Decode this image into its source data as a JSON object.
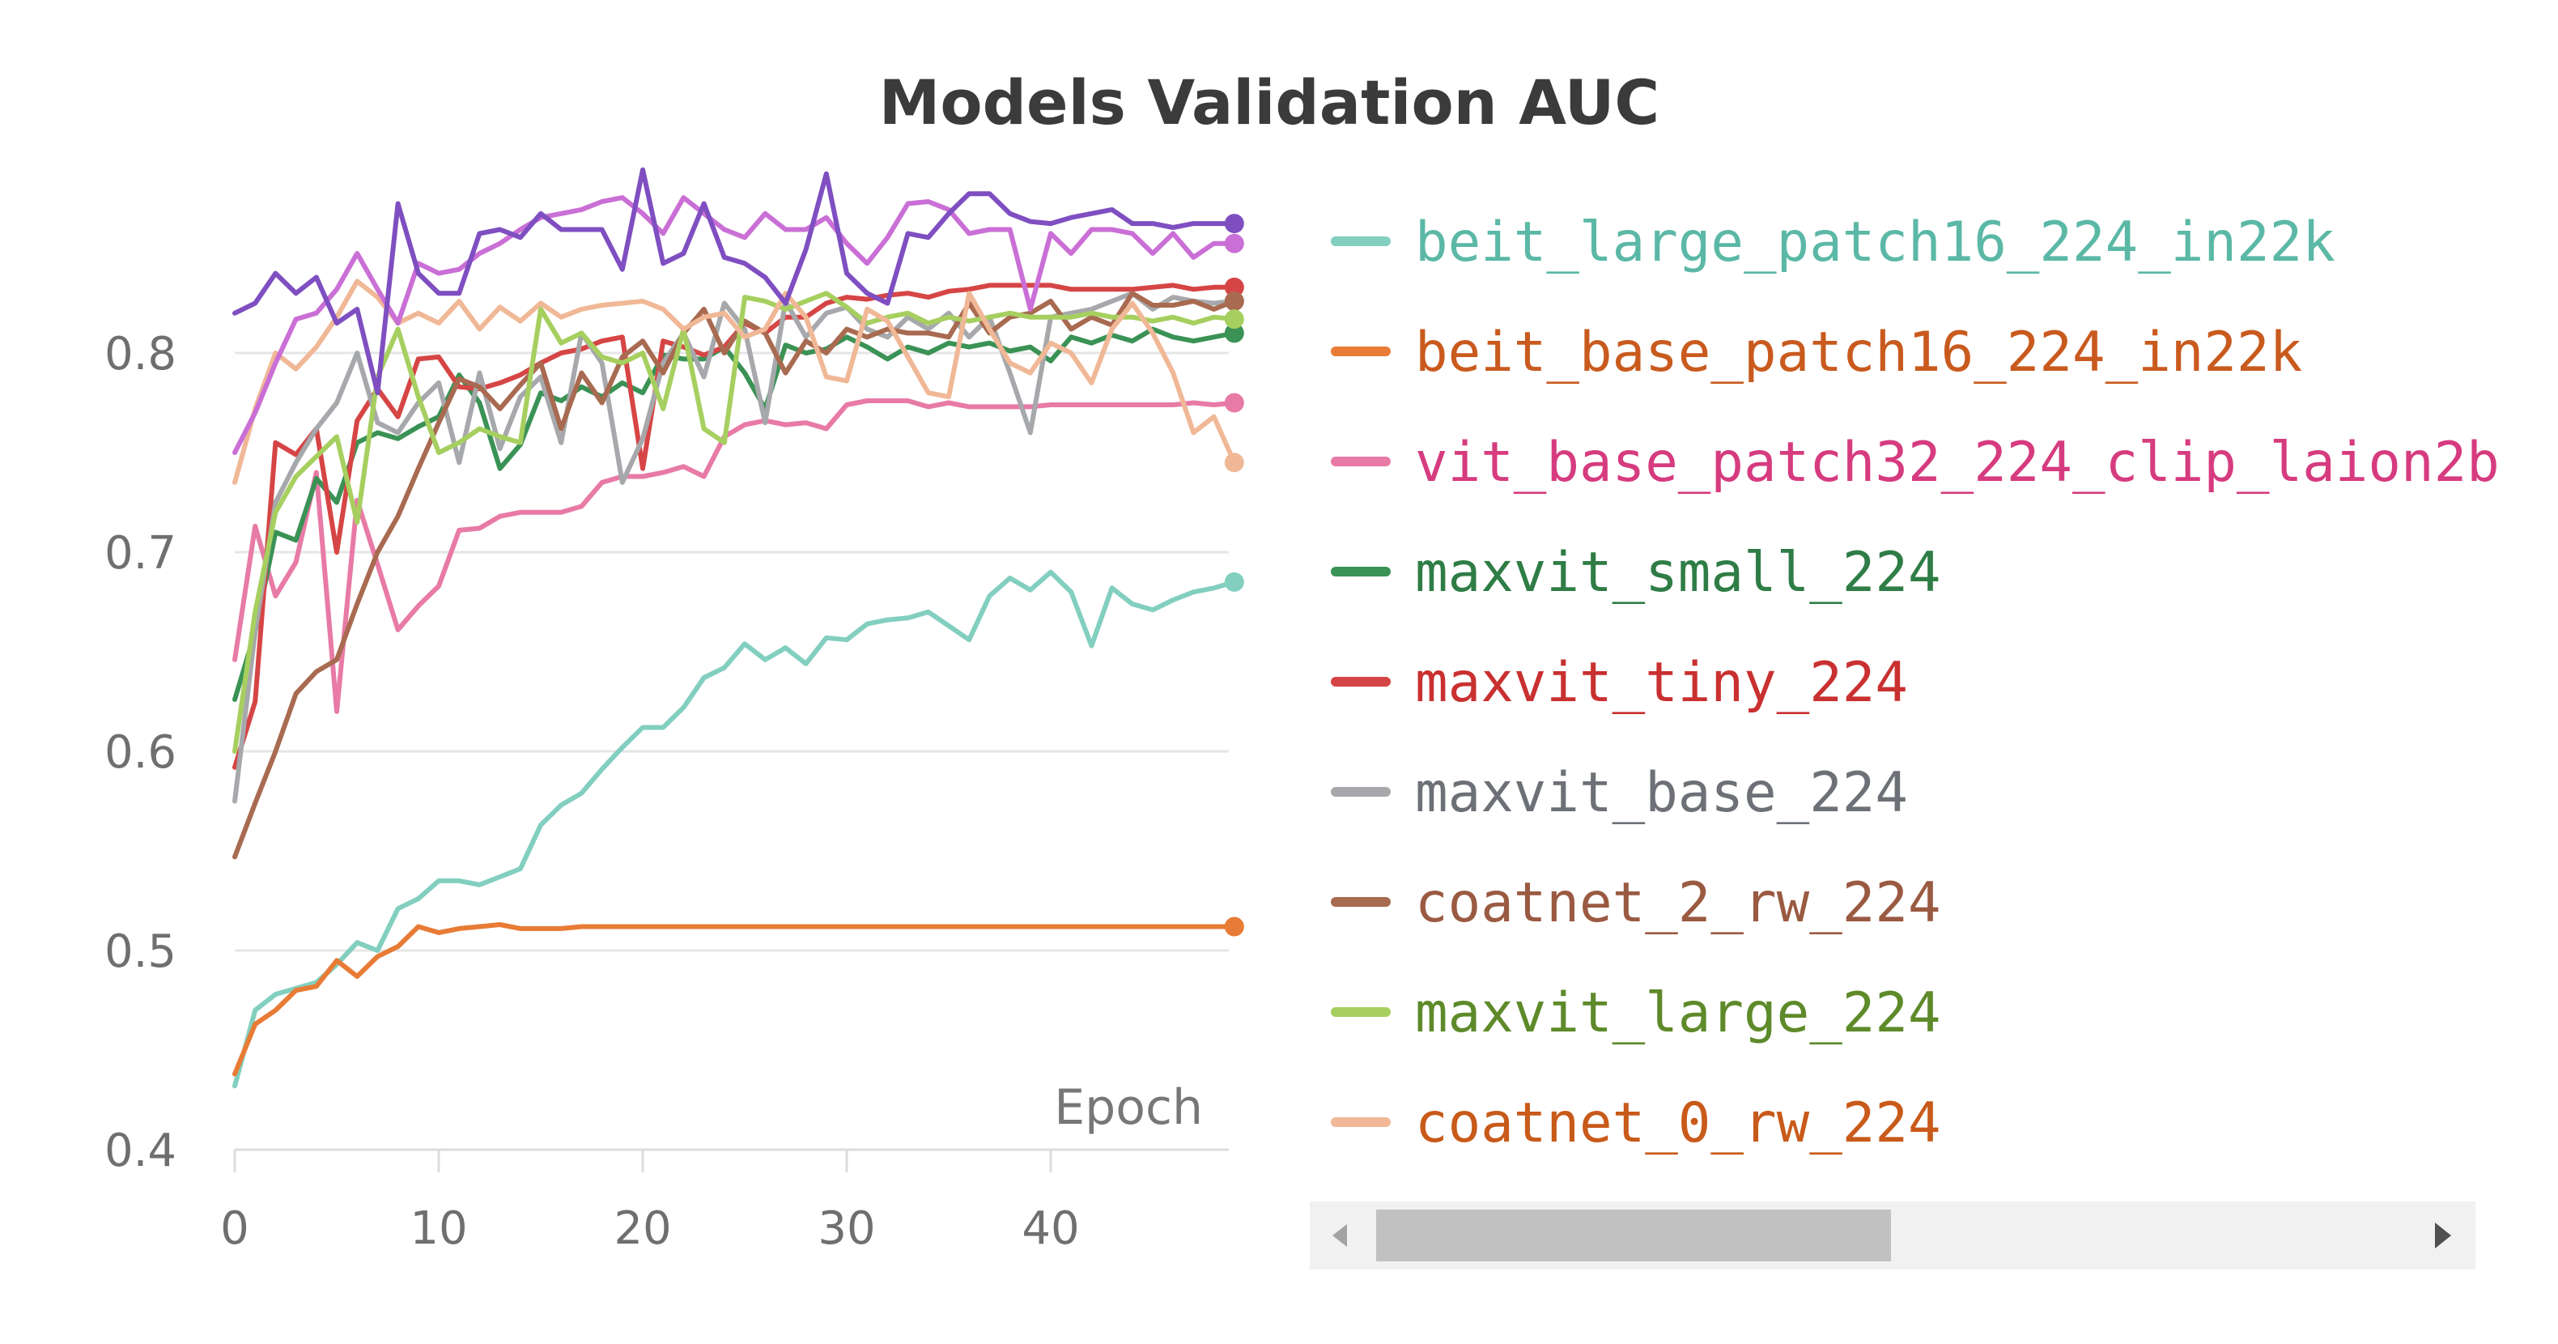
{
  "chart_data": {
    "type": "line",
    "title": "Models Validation AUC",
    "xlabel": "Epoch",
    "ylabel": "",
    "xlim": [
      0,
      49
    ],
    "ylim": [
      0.4,
      0.9
    ],
    "xticks": [
      0,
      10,
      20,
      30,
      40
    ],
    "xtick_labels": [
      "0",
      "10",
      "20",
      "30",
      "40"
    ],
    "yticks": [
      0.4,
      0.5,
      0.6,
      0.7,
      0.8
    ],
    "ytick_labels": [
      "0.4",
      "0.5",
      "0.6",
      "0.7",
      "0.8"
    ],
    "grid": true,
    "legend_position": "right",
    "legend_scrollbar": true,
    "series": [
      {
        "name": "beit_large_patch16_224_in22k",
        "color": "#82cfbf",
        "label_color": "#5bb8a6",
        "x": [
          0,
          1,
          2,
          3,
          4,
          5,
          6,
          7,
          8,
          9,
          10,
          11,
          12,
          13,
          14,
          15,
          16,
          17,
          18,
          19,
          20,
          21,
          22,
          23,
          24,
          25,
          26,
          27,
          28,
          29,
          30,
          31,
          32,
          33,
          34,
          35,
          36,
          37,
          38,
          39,
          40,
          41,
          42,
          43,
          44,
          45,
          46,
          47,
          48,
          49
        ],
        "y": [
          0.432,
          0.47,
          0.478,
          0.481,
          0.484,
          0.493,
          0.504,
          0.5,
          0.521,
          0.526,
          0.535,
          0.535,
          0.533,
          0.537,
          0.541,
          0.563,
          0.573,
          0.579,
          0.591,
          0.602,
          0.612,
          0.612,
          0.622,
          0.637,
          0.642,
          0.654,
          0.646,
          0.652,
          0.644,
          0.657,
          0.656,
          0.664,
          0.666,
          0.667,
          0.67,
          0.663,
          0.656,
          0.678,
          0.687,
          0.681,
          0.69,
          0.68,
          0.653,
          0.682,
          0.674,
          0.671,
          0.676,
          0.68,
          0.682,
          0.685
        ]
      },
      {
        "name": "beit_base_patch16_224_in22k",
        "color": "#e87b35",
        "label_color": "#c95a1e",
        "x": [
          0,
          1,
          2,
          3,
          4,
          5,
          6,
          7,
          8,
          9,
          10,
          11,
          12,
          13,
          14,
          15,
          16,
          17,
          18,
          19,
          20,
          21,
          22,
          23,
          24,
          25,
          26,
          27,
          28,
          29,
          30,
          31,
          32,
          33,
          34,
          35,
          36,
          37,
          38,
          39,
          40,
          41,
          42,
          43,
          44,
          45,
          46,
          47,
          48,
          49
        ],
        "y": [
          0.438,
          0.463,
          0.47,
          0.48,
          0.482,
          0.495,
          0.487,
          0.497,
          0.502,
          0.512,
          0.509,
          0.511,
          0.512,
          0.513,
          0.511,
          0.511,
          0.511,
          0.512,
          0.512,
          0.512,
          0.512,
          0.512,
          0.512,
          0.512,
          0.512,
          0.512,
          0.512,
          0.512,
          0.512,
          0.512,
          0.512,
          0.512,
          0.512,
          0.512,
          0.512,
          0.512,
          0.512,
          0.512,
          0.512,
          0.512,
          0.512,
          0.512,
          0.512,
          0.512,
          0.512,
          0.512,
          0.512,
          0.512,
          0.512,
          0.512
        ]
      },
      {
        "name": "vit_base_patch32_224_clip_laion2b",
        "color": "#e87aa6",
        "label_color": "#d63b7f",
        "x": [
          0,
          1,
          2,
          3,
          4,
          5,
          6,
          7,
          8,
          9,
          10,
          11,
          12,
          13,
          14,
          15,
          16,
          17,
          18,
          19,
          20,
          21,
          22,
          23,
          24,
          25,
          26,
          27,
          28,
          29,
          30,
          31,
          32,
          33,
          34,
          35,
          36,
          37,
          38,
          39,
          40,
          41,
          42,
          43,
          44,
          45,
          46,
          47,
          48,
          49
        ],
        "y": [
          0.646,
          0.713,
          0.678,
          0.695,
          0.74,
          0.62,
          0.726,
          0.694,
          0.661,
          0.673,
          0.683,
          0.711,
          0.712,
          0.718,
          0.72,
          0.72,
          0.72,
          0.723,
          0.735,
          0.738,
          0.738,
          0.74,
          0.743,
          0.738,
          0.758,
          0.764,
          0.766,
          0.764,
          0.765,
          0.762,
          0.774,
          0.776,
          0.776,
          0.776,
          0.773,
          0.775,
          0.773,
          0.773,
          0.773,
          0.773,
          0.774,
          0.774,
          0.774,
          0.774,
          0.774,
          0.774,
          0.774,
          0.775,
          0.774,
          0.775
        ]
      },
      {
        "name": "maxvit_small_224",
        "color": "#3a9255",
        "label_color": "#2f7d46",
        "x": [
          0,
          1,
          2,
          3,
          4,
          5,
          6,
          7,
          8,
          9,
          10,
          11,
          12,
          13,
          14,
          15,
          16,
          17,
          18,
          19,
          20,
          21,
          22,
          23,
          24,
          25,
          26,
          27,
          28,
          29,
          30,
          31,
          32,
          33,
          34,
          35,
          36,
          37,
          38,
          39,
          40,
          41,
          42,
          43,
          44,
          45,
          46,
          47,
          48,
          49
        ],
        "y": [
          0.626,
          0.66,
          0.71,
          0.706,
          0.737,
          0.725,
          0.755,
          0.76,
          0.757,
          0.763,
          0.768,
          0.789,
          0.775,
          0.742,
          0.754,
          0.78,
          0.776,
          0.783,
          0.778,
          0.785,
          0.78,
          0.799,
          0.797,
          0.797,
          0.803,
          0.79,
          0.772,
          0.804,
          0.8,
          0.802,
          0.808,
          0.803,
          0.797,
          0.803,
          0.8,
          0.805,
          0.803,
          0.805,
          0.801,
          0.803,
          0.796,
          0.808,
          0.805,
          0.809,
          0.806,
          0.812,
          0.808,
          0.806,
          0.808,
          0.81
        ]
      },
      {
        "name": "maxvit_tiny_224",
        "color": "#d64545",
        "label_color": "#c93030",
        "x": [
          0,
          1,
          2,
          3,
          4,
          5,
          6,
          7,
          8,
          9,
          10,
          11,
          12,
          13,
          14,
          15,
          16,
          17,
          18,
          19,
          20,
          21,
          22,
          23,
          24,
          25,
          26,
          27,
          28,
          29,
          30,
          31,
          32,
          33,
          34,
          35,
          36,
          37,
          38,
          39,
          40,
          41,
          42,
          43,
          44,
          45,
          46,
          47,
          48,
          49
        ],
        "y": [
          0.592,
          0.625,
          0.755,
          0.749,
          0.762,
          0.7,
          0.766,
          0.782,
          0.768,
          0.797,
          0.798,
          0.783,
          0.782,
          0.785,
          0.789,
          0.795,
          0.8,
          0.802,
          0.806,
          0.808,
          0.742,
          0.806,
          0.803,
          0.799,
          0.803,
          0.815,
          0.81,
          0.818,
          0.818,
          0.825,
          0.828,
          0.827,
          0.829,
          0.83,
          0.828,
          0.831,
          0.832,
          0.834,
          0.834,
          0.834,
          0.834,
          0.832,
          0.832,
          0.832,
          0.832,
          0.833,
          0.834,
          0.832,
          0.833,
          0.833
        ]
      },
      {
        "name": "maxvit_base_224",
        "color": "#a6a8ab",
        "label_color": "#6d7177",
        "x": [
          0,
          1,
          2,
          3,
          4,
          5,
          6,
          7,
          8,
          9,
          10,
          11,
          12,
          13,
          14,
          15,
          16,
          17,
          18,
          19,
          20,
          21,
          22,
          23,
          24,
          25,
          26,
          27,
          28,
          29,
          30,
          31,
          32,
          33,
          34,
          35,
          36,
          37,
          38,
          39,
          40,
          41,
          42,
          43,
          44,
          45,
          46,
          47,
          48,
          49
        ],
        "y": [
          0.575,
          0.66,
          0.725,
          0.745,
          0.762,
          0.775,
          0.8,
          0.765,
          0.76,
          0.775,
          0.785,
          0.745,
          0.79,
          0.752,
          0.778,
          0.788,
          0.755,
          0.81,
          0.795,
          0.735,
          0.757,
          0.795,
          0.81,
          0.788,
          0.825,
          0.812,
          0.765,
          0.826,
          0.808,
          0.82,
          0.823,
          0.812,
          0.808,
          0.818,
          0.812,
          0.82,
          0.808,
          0.818,
          0.79,
          0.76,
          0.818,
          0.82,
          0.822,
          0.826,
          0.83,
          0.822,
          0.828,
          0.826,
          0.825,
          0.826
        ]
      },
      {
        "name": "coatnet_2_rw_224",
        "color": "#a86a50",
        "label_color": "#9a5a42",
        "x": [
          0,
          1,
          2,
          3,
          4,
          5,
          6,
          7,
          8,
          9,
          10,
          11,
          12,
          13,
          14,
          15,
          16,
          17,
          18,
          19,
          20,
          21,
          22,
          23,
          24,
          25,
          26,
          27,
          28,
          29,
          30,
          31,
          32,
          33,
          34,
          35,
          36,
          37,
          38,
          39,
          40,
          41,
          42,
          43,
          44,
          45,
          46,
          47,
          48,
          49
        ],
        "y": [
          0.547,
          0.574,
          0.6,
          0.629,
          0.64,
          0.646,
          0.674,
          0.7,
          0.718,
          0.742,
          0.765,
          0.787,
          0.783,
          0.772,
          0.784,
          0.795,
          0.762,
          0.79,
          0.775,
          0.798,
          0.806,
          0.79,
          0.81,
          0.822,
          0.8,
          0.816,
          0.81,
          0.79,
          0.806,
          0.8,
          0.812,
          0.808,
          0.812,
          0.81,
          0.81,
          0.808,
          0.825,
          0.81,
          0.818,
          0.82,
          0.826,
          0.812,
          0.818,
          0.814,
          0.83,
          0.824,
          0.824,
          0.826,
          0.822,
          0.826
        ]
      },
      {
        "name": "maxvit_large_224",
        "color": "#a6cf5f",
        "label_color": "#5e8a2a",
        "x": [
          0,
          1,
          2,
          3,
          4,
          5,
          6,
          7,
          8,
          9,
          10,
          11,
          12,
          13,
          14,
          15,
          16,
          17,
          18,
          19,
          20,
          21,
          22,
          23,
          24,
          25,
          26,
          27,
          28,
          29,
          30,
          31,
          32,
          33,
          34,
          35,
          36,
          37,
          38,
          39,
          40,
          41,
          42,
          43,
          44,
          45,
          46,
          47,
          48,
          49
        ],
        "y": [
          0.6,
          0.67,
          0.72,
          0.738,
          0.748,
          0.758,
          0.715,
          0.788,
          0.812,
          0.778,
          0.75,
          0.755,
          0.762,
          0.758,
          0.755,
          0.822,
          0.805,
          0.81,
          0.798,
          0.795,
          0.8,
          0.772,
          0.812,
          0.762,
          0.755,
          0.828,
          0.826,
          0.822,
          0.826,
          0.83,
          0.823,
          0.815,
          0.818,
          0.82,
          0.815,
          0.818,
          0.816,
          0.818,
          0.82,
          0.818,
          0.818,
          0.818,
          0.82,
          0.818,
          0.818,
          0.816,
          0.818,
          0.815,
          0.818,
          0.817
        ]
      },
      {
        "name": "coatnet_0_rw_224",
        "color": "#f0b896",
        "label_color": "#c85a1a",
        "x": [
          0,
          1,
          2,
          3,
          4,
          5,
          6,
          7,
          8,
          9,
          10,
          11,
          12,
          13,
          14,
          15,
          16,
          17,
          18,
          19,
          20,
          21,
          22,
          23,
          24,
          25,
          26,
          27,
          28,
          29,
          30,
          31,
          32,
          33,
          34,
          35,
          36,
          37,
          38,
          39,
          40,
          41,
          42,
          43,
          44,
          45,
          46,
          47,
          48,
          49
        ],
        "y": [
          0.735,
          0.772,
          0.8,
          0.792,
          0.803,
          0.818,
          0.836,
          0.828,
          0.815,
          0.82,
          0.815,
          0.826,
          0.812,
          0.823,
          0.816,
          0.825,
          0.818,
          0.822,
          0.824,
          0.825,
          0.826,
          0.822,
          0.812,
          0.818,
          0.82,
          0.808,
          0.812,
          0.83,
          0.818,
          0.788,
          0.786,
          0.822,
          0.816,
          0.798,
          0.78,
          0.778,
          0.83,
          0.812,
          0.795,
          0.79,
          0.805,
          0.8,
          0.785,
          0.812,
          0.825,
          0.81,
          0.79,
          0.76,
          0.768,
          0.745
        ]
      },
      {
        "name": "",
        "color": "#ca6fd6",
        "x": [
          0,
          1,
          2,
          3,
          4,
          5,
          6,
          7,
          8,
          9,
          10,
          11,
          12,
          13,
          14,
          15,
          16,
          17,
          18,
          19,
          20,
          21,
          22,
          23,
          24,
          25,
          26,
          27,
          28,
          29,
          30,
          31,
          32,
          33,
          34,
          35,
          36,
          37,
          38,
          39,
          40,
          41,
          42,
          43,
          44,
          45,
          46,
          47,
          48,
          49
        ],
        "y": [
          0.75,
          0.77,
          0.795,
          0.817,
          0.82,
          0.832,
          0.85,
          0.832,
          0.815,
          0.845,
          0.84,
          0.842,
          0.85,
          0.855,
          0.862,
          0.868,
          0.87,
          0.872,
          0.876,
          0.878,
          0.87,
          0.86,
          0.878,
          0.87,
          0.862,
          0.858,
          0.87,
          0.862,
          0.862,
          0.868,
          0.855,
          0.845,
          0.858,
          0.875,
          0.876,
          0.872,
          0.86,
          0.862,
          0.862,
          0.822,
          0.86,
          0.85,
          0.862,
          0.862,
          0.86,
          0.85,
          0.86,
          0.848,
          0.855,
          0.855
        ]
      },
      {
        "name": "",
        "color": "#7f4fc1",
        "x": [
          0,
          1,
          2,
          3,
          4,
          5,
          6,
          7,
          8,
          9,
          10,
          11,
          12,
          13,
          14,
          15,
          16,
          17,
          18,
          19,
          20,
          21,
          22,
          23,
          24,
          25,
          26,
          27,
          28,
          29,
          30,
          31,
          32,
          33,
          34,
          35,
          36,
          37,
          38,
          39,
          40,
          41,
          42,
          43,
          44,
          45,
          46,
          47,
          48,
          49
        ],
        "y": [
          0.82,
          0.825,
          0.84,
          0.83,
          0.838,
          0.815,
          0.822,
          0.78,
          0.875,
          0.84,
          0.83,
          0.83,
          0.86,
          0.862,
          0.858,
          0.87,
          0.862,
          0.862,
          0.862,
          0.842,
          0.892,
          0.845,
          0.85,
          0.875,
          0.848,
          0.845,
          0.838,
          0.825,
          0.852,
          0.89,
          0.84,
          0.83,
          0.825,
          0.86,
          0.858,
          0.87,
          0.88,
          0.88,
          0.87,
          0.866,
          0.865,
          0.868,
          0.87,
          0.872,
          0.865,
          0.865,
          0.863,
          0.865,
          0.865,
          0.865
        ]
      }
    ]
  },
  "legend": {
    "items": [
      {
        "label": "beit_large_patch16_224_in22k"
      },
      {
        "label": "beit_base_patch16_224_in22k"
      },
      {
        "label": "vit_base_patch32_224_clip_laion2b"
      },
      {
        "label": "maxvit_small_224"
      },
      {
        "label": "maxvit_tiny_224"
      },
      {
        "label": "maxvit_base_224"
      },
      {
        "label": "coatnet_2_rw_224"
      },
      {
        "label": "maxvit_large_224"
      },
      {
        "label": "coatnet_0_rw_224"
      }
    ],
    "scrollbar": {
      "left_icon": "triangle-left-icon",
      "right_icon": "triangle-right-icon"
    }
  }
}
